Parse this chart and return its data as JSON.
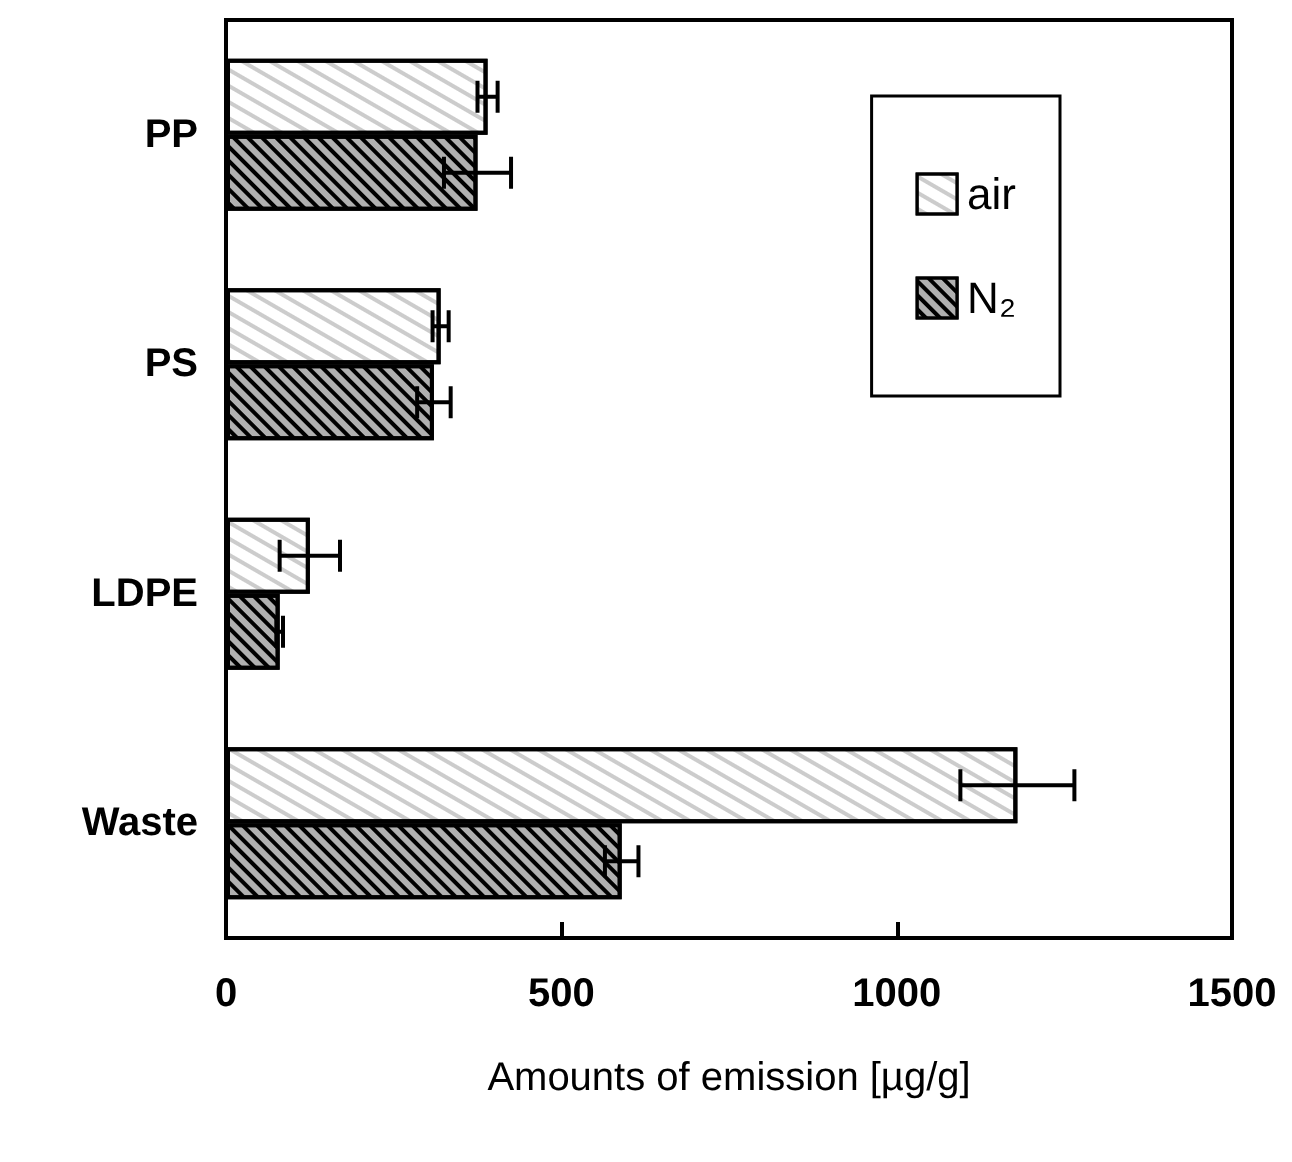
{
  "chart_data": {
    "type": "bar",
    "orientation": "horizontal",
    "xlabel": "Amounts of emission [µg/g]",
    "categories": [
      "PP",
      "PS",
      "LDPE",
      "Waste"
    ],
    "series": [
      {
        "name": "air",
        "color": "#ffffff",
        "values": [
          390,
          320,
          125,
          1180
        ],
        "errors": [
          15,
          12,
          45,
          85
        ]
      },
      {
        "name": "N₂",
        "color": "#b0b0b0",
        "values": [
          375,
          310,
          80,
          590
        ],
        "errors": [
          50,
          25,
          5,
          25
        ]
      }
    ],
    "xlim": [
      0,
      1500
    ],
    "xticks": [
      0,
      500,
      1000,
      1500
    ],
    "grid": false,
    "legend": "top right"
  }
}
